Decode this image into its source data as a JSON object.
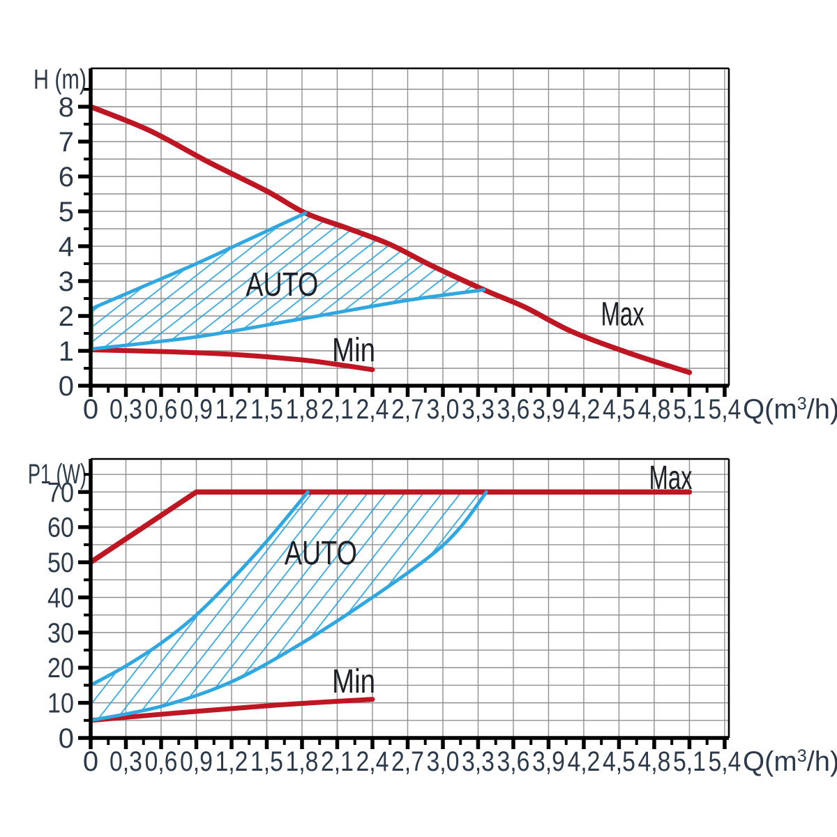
{
  "colors": {
    "red": "#be1622",
    "blue": "#2fa7e0",
    "green": "#3aaa35",
    "grid": "#8f8f8f",
    "axis": "#000000",
    "tick_text": "#2b3949",
    "annotation_text": "#1c1f26",
    "background": "#ffffff"
  },
  "chart_data": [
    {
      "id": "head-chart",
      "type": "line",
      "title": "",
      "ylabel": "H (m)",
      "xlabel_parts": [
        "Q(m",
        "3",
        "/h)"
      ],
      "xlim": [
        0,
        5.436
      ],
      "ylim": [
        0,
        9.1
      ],
      "x_major_step": 0.3,
      "x_minor_step": 0.15,
      "y_major_step": 1,
      "y_minor_step": 0.5,
      "y_minor_max": 8.5,
      "grid_y_step": 0.5,
      "grid_y_max": 8.5,
      "grid": true,
      "legend_position": "none",
      "x_tick_labels": [
        "0",
        "0,3",
        "0,6",
        "0,9",
        "1,2",
        "1,5",
        "1,8",
        "2,1",
        "2,4",
        "2,7",
        "3,0",
        "3,3",
        "3,6",
        "3,9",
        "4,2",
        "4,5",
        "4,8",
        "5,1",
        "5,4"
      ],
      "y_tick_labels": [
        "0",
        "1",
        "2",
        "3",
        "4",
        "5",
        "6",
        "7",
        "8"
      ],
      "series": [
        {
          "id": "max-curve",
          "name": "Max",
          "color_key": "red",
          "width": 7.5,
          "smooth": true,
          "points": [
            [
              0,
              8
            ],
            [
              0.5,
              7.32
            ],
            [
              1.0,
              6.42
            ],
            [
              1.5,
              5.58
            ],
            [
              1.83,
              4.95
            ],
            [
              2.2,
              4.5
            ],
            [
              2.55,
              4.05
            ],
            [
              2.9,
              3.45
            ],
            [
              3.35,
              2.75
            ],
            [
              3.7,
              2.25
            ],
            [
              4.1,
              1.55
            ],
            [
              4.6,
              0.92
            ],
            [
              5.1,
              0.38
            ]
          ]
        },
        {
          "id": "min-curve",
          "name": "Min",
          "color_key": "red",
          "width": 7,
          "smooth": true,
          "points": [
            [
              0,
              1.03
            ],
            [
              0.6,
              0.98
            ],
            [
              1.2,
              0.9
            ],
            [
              1.8,
              0.74
            ],
            [
              2.1,
              0.61
            ],
            [
              2.4,
              0.46
            ]
          ]
        },
        {
          "id": "auto-upper-curve",
          "name": "AUTO upper boundary",
          "color_key": "blue",
          "width": 5,
          "smooth": true,
          "points": [
            [
              0,
              2.2
            ],
            [
              0.45,
              2.85
            ],
            [
              0.9,
              3.5
            ],
            [
              1.35,
              4.2
            ],
            [
              1.83,
              4.95
            ]
          ]
        },
        {
          "id": "auto-lower-curve",
          "name": "AUTO lower boundary",
          "color_key": "blue",
          "width": 5,
          "smooth": true,
          "points": [
            [
              0,
              1.05
            ],
            [
              0.9,
              1.4
            ],
            [
              1.8,
              1.92
            ],
            [
              2.7,
              2.45
            ],
            [
              3.35,
              2.75
            ]
          ]
        },
        {
          "id": "auto-left-edge",
          "name": "AUTO left edge",
          "color_key": "green",
          "width": 3.5,
          "smooth": false,
          "points": [
            [
              0.013,
              1.05
            ],
            [
              0.013,
              2.2
            ]
          ]
        }
      ],
      "auto_region": [
        [
          0,
          2.2
        ],
        [
          0.45,
          2.85
        ],
        [
          0.9,
          3.5
        ],
        [
          1.35,
          4.2
        ],
        [
          1.83,
          4.95
        ],
        [
          2.2,
          4.5
        ],
        [
          2.55,
          4.05
        ],
        [
          2.9,
          3.45
        ],
        [
          3.35,
          2.75
        ],
        [
          2.7,
          2.45
        ],
        [
          1.8,
          1.92
        ],
        [
          0.9,
          1.4
        ],
        [
          0,
          1.05
        ]
      ],
      "hatch": {
        "angle": 38,
        "spacing": 17,
        "line_width": 1.7
      },
      "annotations": [
        {
          "id": "auto-label",
          "text": "AUTO",
          "x": 1.63,
          "y": 2.9
        },
        {
          "id": "min-label",
          "text": "Min",
          "x": 2.24,
          "y": 1.02
        },
        {
          "id": "max-label",
          "text": "Max",
          "x": 4.53,
          "y": 2.05
        }
      ]
    },
    {
      "id": "power-chart",
      "type": "line",
      "title": "",
      "ylabel": "P1 (W)",
      "xlabel_parts": [
        "Q(m",
        "3",
        "/h)"
      ],
      "xlim": [
        0,
        5.436
      ],
      "ylim": [
        0,
        79.4
      ],
      "x_major_step": 0.3,
      "x_minor_step": 0.15,
      "y_major_step": 10,
      "y_minor_step": 5,
      "y_minor_max": 75,
      "grid_y_step": 5,
      "grid_y_max": 75,
      "grid": true,
      "legend_position": "none",
      "x_tick_labels": [
        "0",
        "0,3",
        "0,6",
        "0,9",
        "1,2",
        "1,5",
        "1,8",
        "2,1",
        "2,4",
        "2,7",
        "3,0",
        "3,3",
        "3,6",
        "3,9",
        "4,2",
        "4,5",
        "4,8",
        "5,1",
        "5,4"
      ],
      "y_tick_labels": [
        "0",
        "10",
        "20",
        "30",
        "40",
        "50",
        "60",
        "70"
      ],
      "series": [
        {
          "id": "max-curve",
          "name": "Max",
          "color_key": "red",
          "width": 7.5,
          "smooth": false,
          "points": [
            [
              0,
              50
            ],
            [
              0.9,
              70
            ],
            [
              5.1,
              70
            ]
          ]
        },
        {
          "id": "min-curve",
          "name": "Min",
          "color_key": "red",
          "width": 7,
          "smooth": true,
          "points": [
            [
              0,
              5
            ],
            [
              0.8,
              7.3
            ],
            [
              1.6,
              9.4
            ],
            [
              2.4,
              11
            ]
          ]
        },
        {
          "id": "auto-upper-curve",
          "name": "AUTO upper boundary",
          "color_key": "blue",
          "width": 5,
          "smooth": true,
          "points": [
            [
              0,
              15
            ],
            [
              0.3,
              20.5
            ],
            [
              0.6,
              27
            ],
            [
              0.9,
              35
            ],
            [
              1.2,
              45
            ],
            [
              1.5,
              56
            ],
            [
              1.85,
              70
            ]
          ]
        },
        {
          "id": "auto-lower-curve",
          "name": "AUTO lower boundary",
          "color_key": "blue",
          "width": 5,
          "smooth": true,
          "points": [
            [
              0,
              5
            ],
            [
              0.6,
              9
            ],
            [
              1.2,
              16
            ],
            [
              1.8,
              27
            ],
            [
              2.4,
              40
            ],
            [
              2.9,
              52
            ],
            [
              3.15,
              60
            ],
            [
              3.37,
              70
            ]
          ]
        }
      ],
      "auto_region": [
        [
          0,
          15
        ],
        [
          0.3,
          20.5
        ],
        [
          0.6,
          27
        ],
        [
          0.9,
          35
        ],
        [
          1.2,
          45
        ],
        [
          1.5,
          56
        ],
        [
          1.85,
          70
        ],
        [
          3.37,
          70
        ],
        [
          3.15,
          60
        ],
        [
          2.9,
          52
        ],
        [
          2.4,
          40
        ],
        [
          1.8,
          27
        ],
        [
          1.2,
          16
        ],
        [
          0.6,
          9
        ],
        [
          0,
          5
        ]
      ],
      "hatch": {
        "angle": 52,
        "spacing": 21,
        "line_width": 1.7
      },
      "annotations": [
        {
          "id": "auto-label",
          "text": "AUTO",
          "x": 1.96,
          "y": 52.6
        },
        {
          "id": "min-label",
          "text": "Min",
          "x": 2.24,
          "y": 16.1
        },
        {
          "id": "max-label",
          "text": "Max",
          "x": 4.94,
          "y": 74.0
        }
      ]
    }
  ]
}
